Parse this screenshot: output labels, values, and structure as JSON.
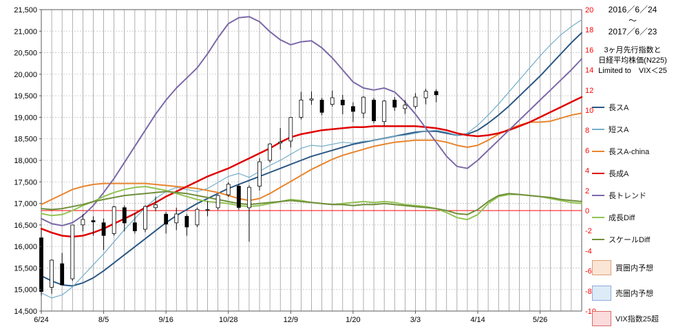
{
  "meta": {
    "date_range_start": "2016／6／24",
    "date_range_tilde": "～",
    "date_range_end": "2017／6／23",
    "subtitle_line1": "3ヶ月先行指数と",
    "subtitle_line2": "日経平均株価(N225)",
    "subtitle_line3": "Limited to　VIX＜25"
  },
  "legend": {
    "line_items": [
      {
        "label": "長スA",
        "color": "#2a5783",
        "width": 2
      },
      {
        "label": "短スA",
        "color": "#74aec9",
        "width": 1.2
      },
      {
        "label": "長スA-china",
        "color": "#e8842c",
        "width": 2
      },
      {
        "label": "長成A",
        "color": "#e00000",
        "width": 2.5
      },
      {
        "label": "長トレンド",
        "color": "#7b68a8",
        "width": 2
      },
      {
        "label": "成長Diff",
        "color": "#92c353",
        "width": 2
      },
      {
        "label": "スケールDiff",
        "color": "#6f8f3a",
        "width": 2
      }
    ],
    "box_items": [
      {
        "label": "買圏内予想",
        "fill": "#fbe5d6",
        "border": "#d9a076"
      },
      {
        "label": "売圏内予想",
        "fill": "#ddebf7",
        "border": "#8faadc"
      },
      {
        "label": "VIX指数25超",
        "fill": "#fbdbdb",
        "border": "#d96a6a"
      }
    ]
  },
  "chart_data": {
    "type": "line",
    "title": "3ヶ月先行指数と日経平均株価(N225)",
    "subtitle": "Limited to VIX＜25",
    "period": "2016/6/24～2017/6/23",
    "grid": true,
    "legend_position": "right",
    "left_axis": {
      "min": 14500,
      "max": 21500,
      "step": 500,
      "color": "#000000",
      "applies_to": "日経平均株価(N225)"
    },
    "right_axis": {
      "min": -10,
      "max": 20,
      "step": 2,
      "color": "#ff0000",
      "zero_line_color": "#ff0000",
      "applies_to": "指数"
    },
    "x_tick_labels": [
      "6/24",
      "8/5",
      "9/16",
      "10/28",
      "12/9",
      "1/20",
      "3/3",
      "4/14",
      "5/26"
    ],
    "x_tick_weeks": [
      0,
      6,
      12,
      18,
      24,
      30,
      36,
      42,
      48
    ],
    "weeks_total": 53,
    "candles": {
      "name": "日経平均株価(N225) 週足",
      "axis": "left",
      "start_label": "6/24",
      "ohlc": [
        [
          16200,
          16390,
          14860,
          14952
        ],
        [
          15050,
          15700,
          14900,
          15682
        ],
        [
          15600,
          15850,
          15100,
          15107
        ],
        [
          15250,
          16500,
          15200,
          16498
        ],
        [
          16500,
          16750,
          16350,
          16627
        ],
        [
          16600,
          16700,
          16250,
          16569
        ],
        [
          16550,
          16650,
          15920,
          16254
        ],
        [
          16300,
          16940,
          16250,
          16920
        ],
        [
          16900,
          16950,
          16350,
          16546
        ],
        [
          16550,
          16780,
          16300,
          16361
        ],
        [
          16400,
          16960,
          16330,
          16926
        ],
        [
          16900,
          17160,
          16820,
          16966
        ],
        [
          16750,
          16800,
          16300,
          16519
        ],
        [
          16550,
          16900,
          16380,
          16754
        ],
        [
          16700,
          16750,
          16250,
          16450
        ],
        [
          16500,
          16900,
          16450,
          16860
        ],
        [
          16850,
          17050,
          16700,
          16856
        ],
        [
          16900,
          17200,
          16850,
          17184
        ],
        [
          17200,
          17490,
          17150,
          17446
        ],
        [
          17400,
          17450,
          16850,
          16905
        ],
        [
          16900,
          17420,
          16110,
          17374
        ],
        [
          17400,
          18050,
          17300,
          17967
        ],
        [
          18000,
          18400,
          17950,
          18381
        ],
        [
          18400,
          18750,
          18250,
          18426
        ],
        [
          18450,
          19000,
          18300,
          18996
        ],
        [
          19000,
          19590,
          18950,
          19401
        ],
        [
          19400,
          19600,
          19290,
          19427
        ],
        [
          19400,
          19450,
          19050,
          19114
        ],
        [
          19300,
          19620,
          19250,
          19454
        ],
        [
          19400,
          19520,
          19070,
          19287
        ],
        [
          19250,
          19350,
          18890,
          19137
        ],
        [
          19100,
          19490,
          18980,
          19467
        ],
        [
          19400,
          19450,
          18860,
          18918
        ],
        [
          18900,
          19400,
          18800,
          19378
        ],
        [
          19400,
          19470,
          19150,
          19234
        ],
        [
          19200,
          19400,
          19080,
          19283
        ],
        [
          19250,
          19560,
          19200,
          19469
        ],
        [
          19450,
          19660,
          19300,
          19604
        ],
        [
          19600,
          19650,
          19350,
          19521
        ]
      ]
    },
    "series": [
      {
        "name": "長スA",
        "axis": "right",
        "color": "#2a5783",
        "width": 2,
        "values": [
          -6.5,
          -7.0,
          -7.4,
          -7.5,
          -7.2,
          -6.7,
          -6.0,
          -5.2,
          -4.4,
          -3.6,
          -2.8,
          -2.0,
          -1.2,
          -0.5,
          0.1,
          0.7,
          1.2,
          1.7,
          2.2,
          2.6,
          3.0,
          3.4,
          3.8,
          4.2,
          4.6,
          5.0,
          5.4,
          5.7,
          6.0,
          6.3,
          6.6,
          6.8,
          7.0,
          7.2,
          7.4,
          7.6,
          7.8,
          7.9,
          7.9,
          7.7,
          7.5,
          7.6,
          8.0,
          8.7,
          9.5,
          10.4,
          11.4,
          12.4,
          13.4,
          14.5,
          15.6,
          16.7,
          17.7
        ]
      },
      {
        "name": "短スA",
        "axis": "right",
        "color": "#74aec9",
        "width": 1.2,
        "values": [
          -8.2,
          -8.7,
          -8.4,
          -7.6,
          -6.5,
          -5.4,
          -4.3,
          -3.1,
          -1.9,
          -0.8,
          0.3,
          1.2,
          1.9,
          2.3,
          2.1,
          1.9,
          2.2,
          2.8,
          3.4,
          3.7,
          3.3,
          3.9,
          4.5,
          5.0,
          5.6,
          6.2,
          6.5,
          6.4,
          6.6,
          6.8,
          6.7,
          6.9,
          7.0,
          7.2,
          7.4,
          7.5,
          7.7,
          7.9,
          8.0,
          7.8,
          7.5,
          7.7,
          8.5,
          9.5,
          10.6,
          11.8,
          13.0,
          14.2,
          15.4,
          16.5,
          17.5,
          18.3,
          19.0
        ]
      },
      {
        "name": "長スA-china",
        "axis": "right",
        "color": "#e8842c",
        "width": 2,
        "values": [
          0.6,
          1.1,
          1.6,
          2.1,
          2.4,
          2.6,
          2.7,
          2.7,
          2.7,
          2.7,
          2.7,
          2.6,
          2.5,
          2.4,
          2.3,
          2.2,
          2.0,
          1.8,
          1.5,
          1.2,
          1.0,
          1.2,
          1.7,
          2.3,
          2.9,
          3.5,
          4.1,
          4.6,
          5.1,
          5.5,
          5.8,
          6.1,
          6.4,
          6.6,
          6.8,
          6.9,
          7.0,
          7.0,
          7.0,
          6.8,
          6.5,
          6.3,
          6.5,
          7.0,
          7.6,
          8.1,
          8.5,
          8.8,
          8.8,
          8.9,
          9.2,
          9.5,
          9.7
        ]
      },
      {
        "name": "長成A",
        "axis": "right",
        "color": "#e00000",
        "width": 2.5,
        "values": [
          -1.8,
          -2.2,
          -2.5,
          -2.6,
          -2.5,
          -2.2,
          -1.8,
          -1.3,
          -0.8,
          -0.3,
          0.3,
          0.8,
          1.4,
          1.9,
          2.4,
          2.9,
          3.4,
          3.8,
          4.2,
          4.7,
          5.2,
          5.7,
          6.2,
          6.8,
          7.3,
          7.6,
          7.8,
          8.0,
          8.1,
          8.2,
          8.3,
          8.3,
          8.4,
          8.4,
          8.4,
          8.4,
          8.4,
          8.3,
          8.2,
          8.0,
          7.7,
          7.5,
          7.4,
          7.5,
          7.7,
          8.0,
          8.4,
          8.8,
          9.3,
          9.8,
          10.3,
          10.8,
          11.3
        ]
      },
      {
        "name": "長トレンド",
        "axis": "right",
        "color": "#7b68a8",
        "width": 2,
        "values": [
          -0.8,
          -1.3,
          -1.5,
          -1.2,
          -0.5,
          0.5,
          1.8,
          3.2,
          4.8,
          6.4,
          8.0,
          9.6,
          11.0,
          12.2,
          13.2,
          14.2,
          15.6,
          17.2,
          18.6,
          19.2,
          19.3,
          18.8,
          17.8,
          17.0,
          16.5,
          16.8,
          16.9,
          16.2,
          15.2,
          14.0,
          12.8,
          12.2,
          12.0,
          12.2,
          11.8,
          10.8,
          9.6,
          8.2,
          6.8,
          5.4,
          4.4,
          4.2,
          5.0,
          6.0,
          7.0,
          8.0,
          9.0,
          10.0,
          11.0,
          12.0,
          13.0,
          14.0,
          15.1
        ]
      },
      {
        "name": "成長Diff",
        "axis": "right",
        "color": "#92c353",
        "width": 2,
        "values": [
          -0.3,
          -0.5,
          -0.4,
          0.0,
          0.5,
          0.9,
          1.4,
          1.8,
          2.1,
          2.3,
          2.4,
          2.2,
          2.0,
          1.7,
          1.4,
          1.1,
          0.9,
          0.8,
          0.7,
          0.5,
          0.4,
          0.5,
          0.7,
          0.9,
          1.1,
          1.0,
          0.8,
          0.7,
          0.6,
          0.7,
          0.8,
          0.9,
          0.8,
          0.9,
          0.8,
          0.6,
          0.5,
          0.4,
          0.2,
          -0.2,
          -0.7,
          -0.9,
          -0.4,
          0.7,
          1.4,
          1.6,
          1.6,
          1.5,
          1.4,
          1.2,
          1.0,
          0.8,
          0.7
        ]
      },
      {
        "name": "スケールDiff",
        "axis": "right",
        "color": "#6f8f3a",
        "width": 2,
        "values": [
          0.2,
          0.1,
          0.2,
          0.4,
          0.6,
          0.9,
          1.1,
          1.3,
          1.5,
          1.6,
          1.7,
          1.8,
          1.9,
          1.8,
          1.7,
          1.5,
          1.3,
          1.1,
          0.9,
          0.7,
          0.6,
          0.7,
          0.8,
          0.9,
          1.0,
          0.9,
          0.8,
          0.7,
          0.6,
          0.6,
          0.5,
          0.6,
          0.6,
          0.7,
          0.6,
          0.5,
          0.4,
          0.3,
          0.2,
          0.0,
          -0.3,
          -0.4,
          0.1,
          0.9,
          1.5,
          1.7,
          1.6,
          1.5,
          1.4,
          1.3,
          1.1,
          1.0,
          0.9
        ]
      }
    ]
  }
}
